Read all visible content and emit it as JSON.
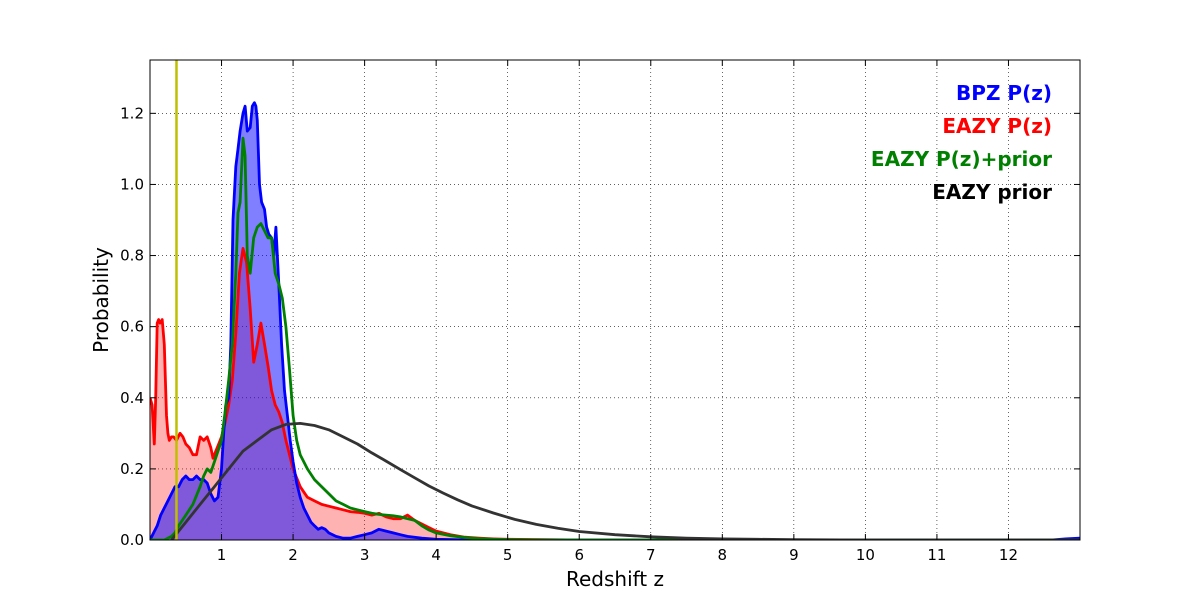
{
  "chart_data": {
    "type": "area",
    "xlabel": "Redshift z",
    "ylabel": "Probability",
    "xlim": [
      0,
      13
    ],
    "ylim": [
      0,
      1.35
    ],
    "xticks": [
      1,
      2,
      3,
      4,
      5,
      6,
      7,
      8,
      9,
      10,
      11,
      12
    ],
    "yticks": [
      "0.0",
      "0.2",
      "0.4",
      "0.6",
      "0.8",
      "1.0",
      "1.2"
    ],
    "grid": true,
    "legend_position": "top-right",
    "vline": {
      "x": 0.37,
      "color": "#bfbf00"
    },
    "series": [
      {
        "name": "EAZY P(z)",
        "color": "#ff0000",
        "fill": "#ff0000",
        "fill_opacity": 0.3,
        "x": [
          0,
          0.03,
          0.06,
          0.08,
          0.1,
          0.12,
          0.14,
          0.17,
          0.2,
          0.23,
          0.25,
          0.27,
          0.3,
          0.33,
          0.37,
          0.42,
          0.46,
          0.5,
          0.55,
          0.6,
          0.65,
          0.7,
          0.75,
          0.8,
          0.85,
          0.88,
          0.92,
          0.96,
          1.0,
          1.05,
          1.1,
          1.15,
          1.2,
          1.25,
          1.3,
          1.35,
          1.4,
          1.45,
          1.5,
          1.55,
          1.6,
          1.65,
          1.7,
          1.75,
          1.8,
          1.85,
          1.9,
          2.0,
          2.1,
          2.2,
          2.3,
          2.4,
          2.5,
          2.6,
          2.7,
          2.8,
          2.9,
          3.0,
          3.1,
          3.2,
          3.3,
          3.4,
          3.5,
          3.6,
          3.7,
          3.8,
          3.9,
          4.0,
          4.2,
          4.4,
          4.6,
          4.8,
          5.0,
          5.5,
          6.0,
          13.0
        ],
        "y": [
          0.4,
          0.38,
          0.27,
          0.4,
          0.61,
          0.62,
          0.61,
          0.62,
          0.55,
          0.35,
          0.3,
          0.28,
          0.29,
          0.29,
          0.28,
          0.3,
          0.29,
          0.27,
          0.26,
          0.24,
          0.24,
          0.29,
          0.28,
          0.29,
          0.26,
          0.23,
          0.25,
          0.27,
          0.29,
          0.33,
          0.38,
          0.45,
          0.58,
          0.75,
          0.82,
          0.78,
          0.65,
          0.5,
          0.55,
          0.61,
          0.55,
          0.49,
          0.42,
          0.38,
          0.36,
          0.33,
          0.28,
          0.2,
          0.15,
          0.12,
          0.11,
          0.1,
          0.095,
          0.09,
          0.085,
          0.08,
          0.078,
          0.075,
          0.07,
          0.075,
          0.065,
          0.06,
          0.06,
          0.07,
          0.055,
          0.045,
          0.035,
          0.025,
          0.015,
          0.008,
          0.005,
          0.003,
          0.002,
          0.001,
          0.0,
          0.0
        ]
      },
      {
        "name": "BPZ P(z)",
        "color": "#0000ff",
        "fill": "#0000ff",
        "fill_opacity": 0.5,
        "x": [
          0,
          0.05,
          0.1,
          0.15,
          0.2,
          0.25,
          0.3,
          0.35,
          0.4,
          0.45,
          0.5,
          0.55,
          0.6,
          0.65,
          0.7,
          0.75,
          0.8,
          0.85,
          0.9,
          0.95,
          1.0,
          1.03,
          1.06,
          1.1,
          1.13,
          1.16,
          1.2,
          1.23,
          1.26,
          1.3,
          1.33,
          1.36,
          1.4,
          1.43,
          1.46,
          1.48,
          1.5,
          1.53,
          1.56,
          1.6,
          1.63,
          1.66,
          1.7,
          1.73,
          1.76,
          1.8,
          1.84,
          1.88,
          1.92,
          1.96,
          2.0,
          2.05,
          2.1,
          2.15,
          2.2,
          2.25,
          2.3,
          2.35,
          2.4,
          2.45,
          2.5,
          2.6,
          2.7,
          2.8,
          2.9,
          3.0,
          3.1,
          3.2,
          3.3,
          3.4,
          3.5,
          3.6,
          3.8,
          4.0,
          4.5,
          5.0,
          12.6,
          12.8,
          13.0
        ],
        "y": [
          0.0,
          0.02,
          0.04,
          0.07,
          0.09,
          0.11,
          0.13,
          0.15,
          0.15,
          0.17,
          0.18,
          0.17,
          0.17,
          0.18,
          0.17,
          0.17,
          0.16,
          0.13,
          0.11,
          0.12,
          0.2,
          0.3,
          0.38,
          0.4,
          0.55,
          0.9,
          1.05,
          1.1,
          1.15,
          1.2,
          1.22,
          1.15,
          1.16,
          1.22,
          1.23,
          1.22,
          1.18,
          1.0,
          0.95,
          0.93,
          0.88,
          0.86,
          0.85,
          0.8,
          0.88,
          0.72,
          0.55,
          0.42,
          0.35,
          0.28,
          0.22,
          0.16,
          0.12,
          0.09,
          0.07,
          0.05,
          0.04,
          0.03,
          0.035,
          0.03,
          0.02,
          0.01,
          0.005,
          0.005,
          0.01,
          0.015,
          0.02,
          0.03,
          0.025,
          0.02,
          0.015,
          0.01,
          0.005,
          0.002,
          0.0,
          0.0,
          0.0,
          0.003,
          0.005
        ]
      },
      {
        "name": "EAZY P(z)+prior",
        "color": "#008000",
        "fill": null,
        "x": [
          0,
          0.1,
          0.2,
          0.3,
          0.35,
          0.4,
          0.5,
          0.6,
          0.7,
          0.75,
          0.8,
          0.85,
          0.9,
          0.95,
          1.0,
          1.05,
          1.1,
          1.15,
          1.2,
          1.23,
          1.26,
          1.3,
          1.33,
          1.36,
          1.4,
          1.45,
          1.5,
          1.55,
          1.6,
          1.65,
          1.7,
          1.75,
          1.8,
          1.85,
          1.9,
          1.95,
          2.0,
          2.05,
          2.1,
          2.2,
          2.3,
          2.4,
          2.5,
          2.6,
          2.7,
          2.8,
          2.9,
          3.0,
          3.1,
          3.2,
          3.3,
          3.4,
          3.5,
          3.6,
          3.7,
          3.8,
          3.9,
          4.0,
          4.2,
          4.4,
          4.6,
          4.8,
          5.0,
          5.5,
          13.0
        ],
        "y": [
          0.0,
          0.0,
          0.0,
          0.01,
          0.02,
          0.04,
          0.07,
          0.1,
          0.15,
          0.18,
          0.2,
          0.19,
          0.22,
          0.25,
          0.28,
          0.36,
          0.45,
          0.55,
          0.75,
          0.92,
          0.95,
          1.13,
          1.08,
          0.8,
          0.75,
          0.85,
          0.88,
          0.89,
          0.87,
          0.85,
          0.85,
          0.75,
          0.72,
          0.68,
          0.6,
          0.48,
          0.35,
          0.28,
          0.24,
          0.2,
          0.17,
          0.15,
          0.13,
          0.11,
          0.1,
          0.09,
          0.085,
          0.08,
          0.075,
          0.072,
          0.07,
          0.068,
          0.065,
          0.06,
          0.055,
          0.04,
          0.028,
          0.02,
          0.012,
          0.007,
          0.004,
          0.002,
          0.001,
          0.0,
          0.0
        ]
      },
      {
        "name": "EAZY prior",
        "color": "#333333",
        "fill": null,
        "x": [
          0.3,
          0.5,
          0.7,
          0.9,
          1.1,
          1.3,
          1.5,
          1.7,
          1.9,
          2.1,
          2.3,
          2.5,
          2.7,
          2.9,
          3.1,
          3.3,
          3.5,
          3.7,
          3.9,
          4.1,
          4.3,
          4.5,
          4.8,
          5.1,
          5.4,
          5.7,
          6.0,
          6.5,
          7.0,
          7.5,
          8.0,
          8.5,
          9.0,
          10.0,
          11.0,
          12.0,
          13.0
        ],
        "y": [
          0.0,
          0.05,
          0.1,
          0.15,
          0.2,
          0.25,
          0.28,
          0.31,
          0.325,
          0.328,
          0.322,
          0.31,
          0.29,
          0.27,
          0.245,
          0.222,
          0.198,
          0.175,
          0.152,
          0.132,
          0.113,
          0.096,
          0.076,
          0.058,
          0.044,
          0.033,
          0.024,
          0.015,
          0.009,
          0.005,
          0.003,
          0.002,
          0.001,
          0.0,
          0.0,
          0.0,
          0.0
        ]
      }
    ],
    "legend": [
      {
        "label": "BPZ P(z)",
        "color": "#0000ff"
      },
      {
        "label": "EAZY P(z)",
        "color": "#ff0000"
      },
      {
        "label": "EAZY P(z)+prior",
        "color": "#008000"
      },
      {
        "label": "EAZY prior",
        "color": "#000000"
      }
    ]
  }
}
